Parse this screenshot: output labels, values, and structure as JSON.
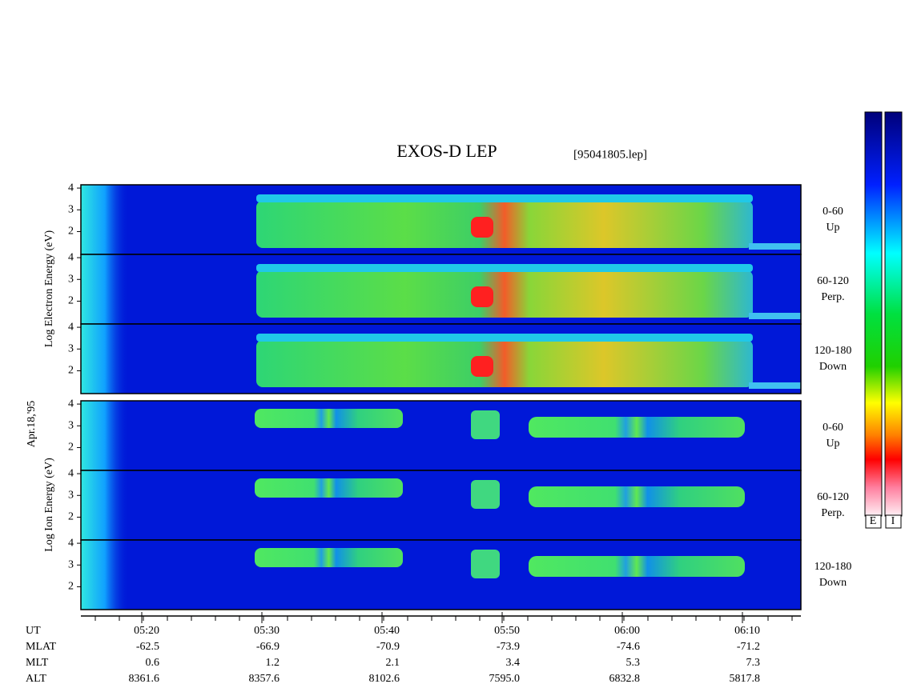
{
  "chart_data": {
    "type": "spectrogram",
    "title": "EXOS-D LEP",
    "file": "[95041805.lep]",
    "date": "Apr.18,'95",
    "ylim": [
      0.95,
      4.15
    ],
    "yticks": [
      2,
      3,
      4
    ],
    "groups": [
      {
        "axis_label": "Log Electron Energy (eV)"
      },
      {
        "axis_label": "Log Ion Energy (eV)"
      }
    ],
    "panels": [
      {
        "group": 0,
        "pitch": "0-60",
        "direction": "Up"
      },
      {
        "group": 0,
        "pitch": "60-120",
        "direction": "Perp."
      },
      {
        "group": 0,
        "pitch": "120-180",
        "direction": "Down"
      },
      {
        "group": 1,
        "pitch": "0-60",
        "direction": "Up"
      },
      {
        "group": 1,
        "pitch": "60-120",
        "direction": "Perp."
      },
      {
        "group": 1,
        "pitch": "120-180",
        "direction": "Down"
      }
    ],
    "colorbar_labels": [
      "E",
      "I"
    ],
    "time_axis": {
      "rows": [
        {
          "name": "UT",
          "values": [
            "05:20",
            "05:30",
            "05:40",
            "05:50",
            "06:00",
            "06:10"
          ]
        },
        {
          "name": "MLAT",
          "values": [
            "-62.5",
            "-66.9",
            "-70.9",
            "-73.9",
            "-74.6",
            "-71.2"
          ]
        },
        {
          "name": "MLT",
          "values": [
            "0.6",
            "1.2",
            "2.1",
            "3.4",
            "5.3",
            "7.3"
          ]
        },
        {
          "name": "ALT",
          "values": [
            "8361.6",
            "8357.6",
            "8102.6",
            "7595.0",
            "6832.8",
            "5817.8"
          ]
        }
      ]
    }
  }
}
